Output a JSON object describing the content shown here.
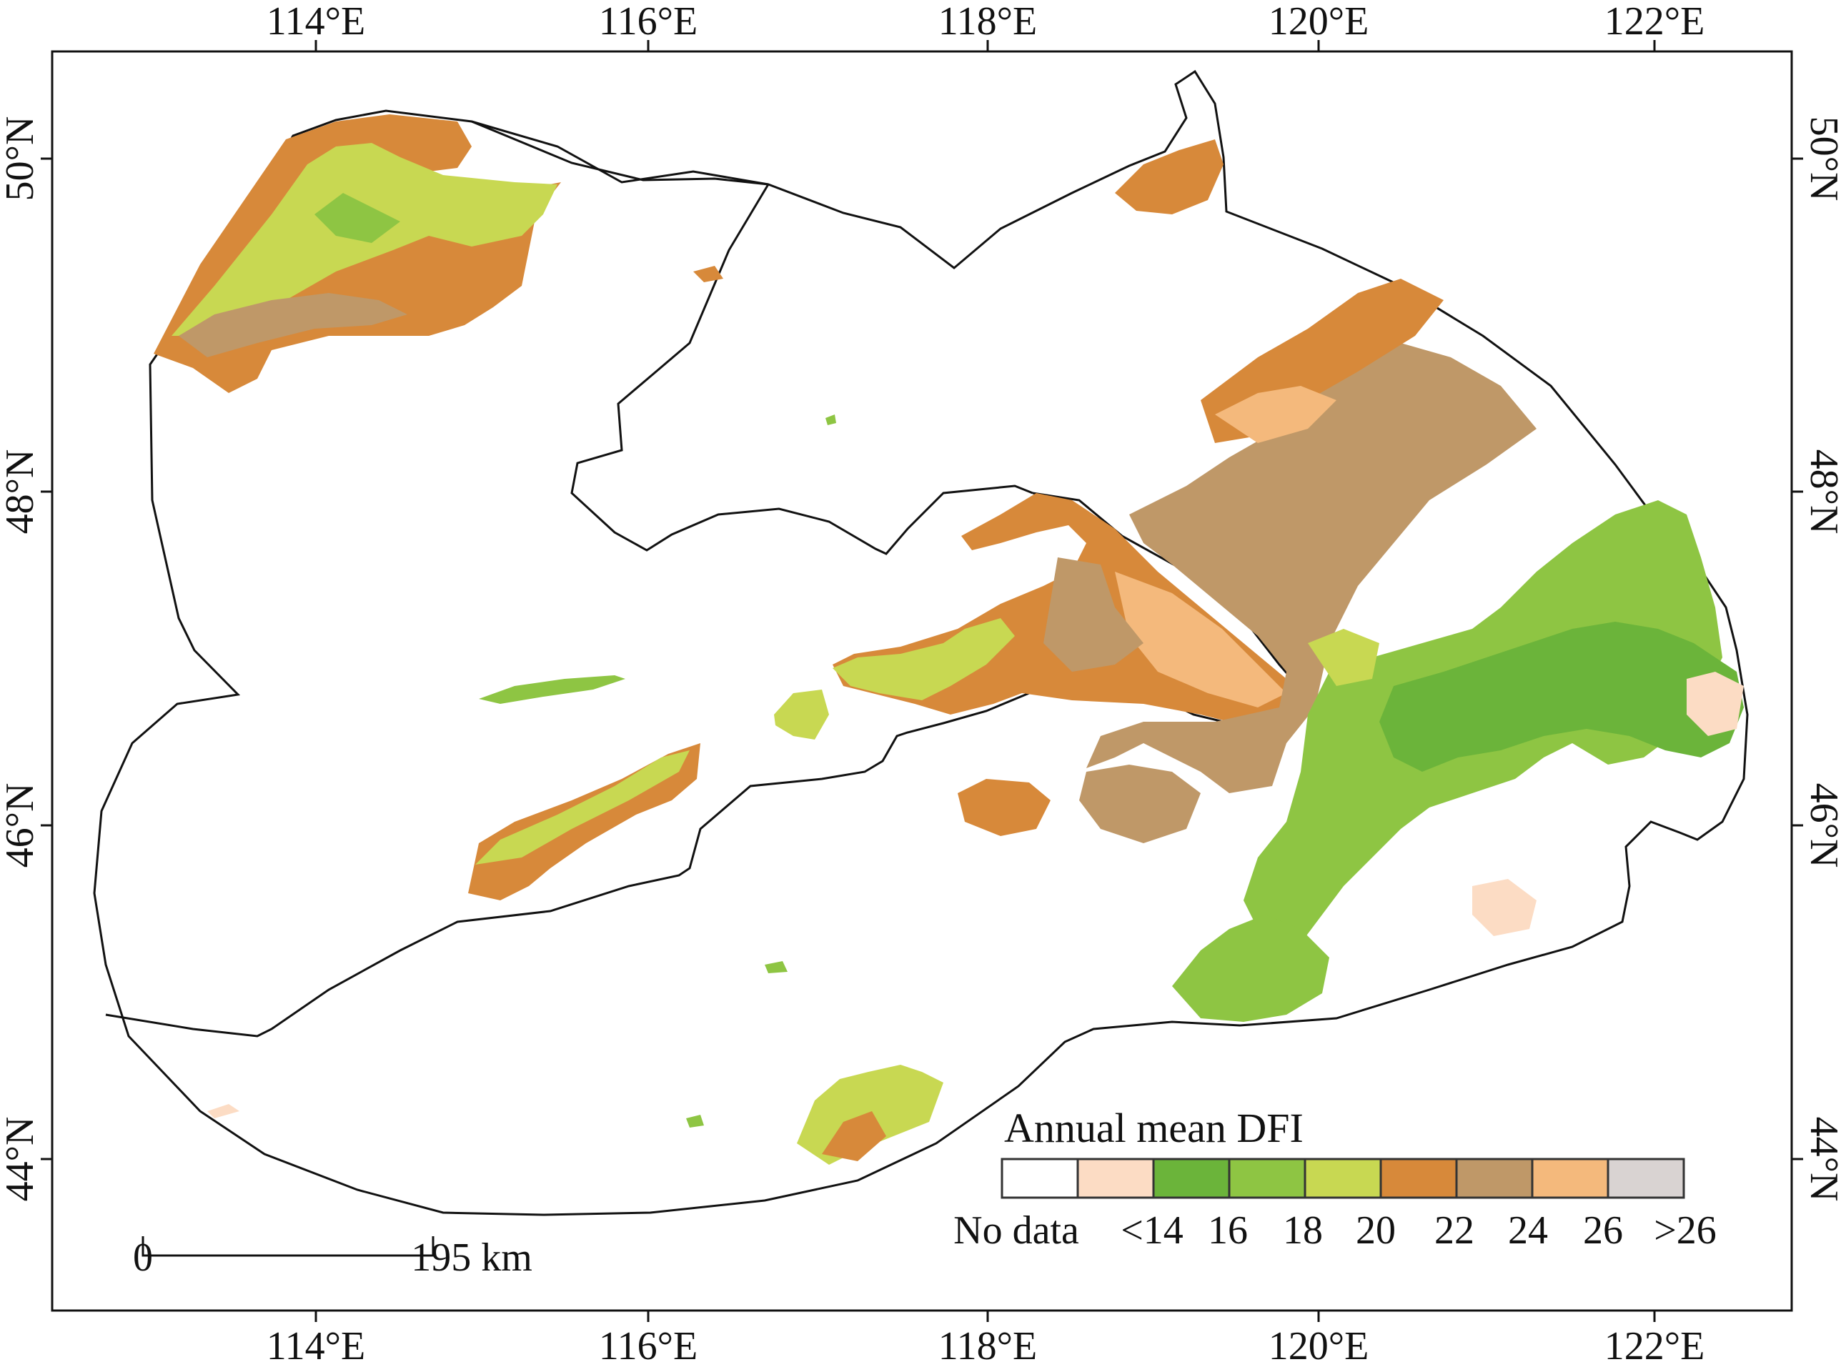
{
  "axes": {
    "top_labels": [
      "114°E",
      "116°E",
      "118°E",
      "120°E",
      "122°E"
    ],
    "bottom_labels": [
      "114°E",
      "116°E",
      "118°E",
      "120°E",
      "122°E"
    ],
    "left_labels": [
      "50°N",
      "48°N",
      "46°N",
      "44°N"
    ],
    "right_labels": [
      "50°N",
      "48°N",
      "46°N",
      "44°N"
    ]
  },
  "legend": {
    "title": "Annual mean DFI",
    "classes": [
      {
        "color": "#ffffff"
      },
      {
        "color": "#fcdcc4"
      },
      {
        "color": "#6bb43a"
      },
      {
        "color": "#8ec543"
      },
      {
        "color": "#c8d852"
      },
      {
        "color": "#d7893a"
      },
      {
        "color": "#bf9868"
      },
      {
        "color": "#f4b97c"
      },
      {
        "color": "#d9d3d2"
      }
    ],
    "labels": [
      "No data",
      "<14",
      "16",
      "18",
      "20",
      "22",
      "24",
      "26",
      ">26"
    ]
  },
  "scale_bar": {
    "start_label": "0",
    "end_label": "195 km"
  }
}
